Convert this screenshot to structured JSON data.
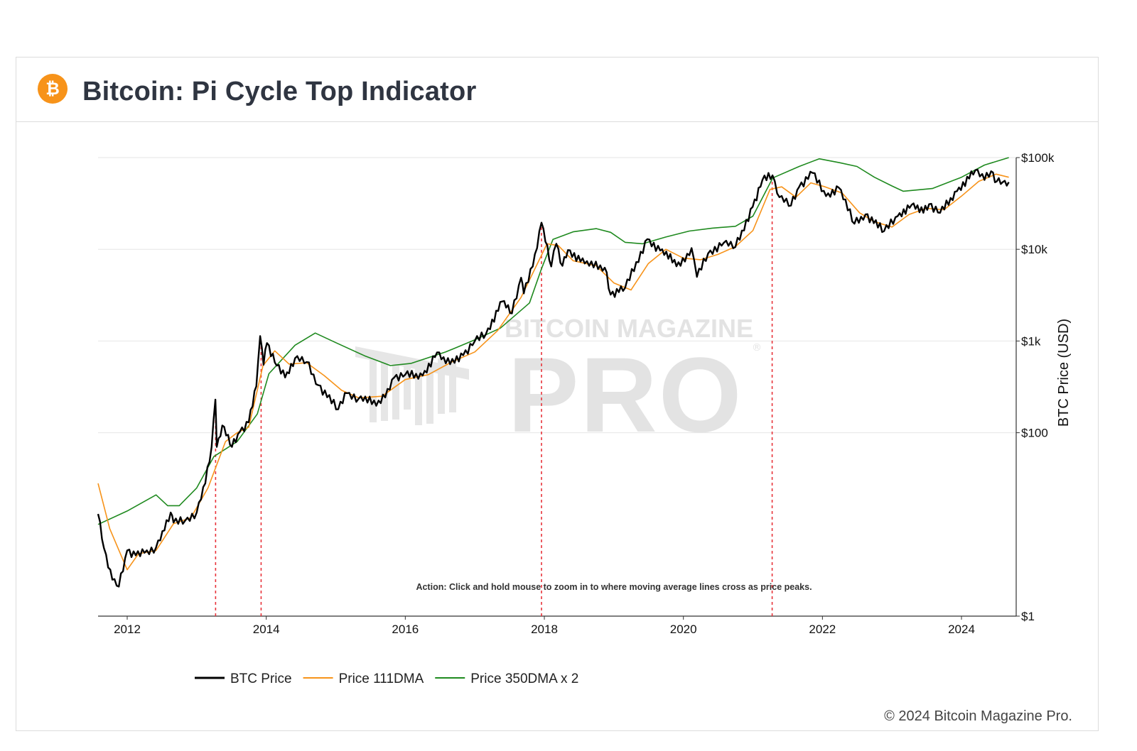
{
  "header": {
    "title": "Bitcoin: Pi Cycle Top Indicator",
    "logo_icon": "bitcoin-logo-icon",
    "logo_symbol": "₿",
    "logo_color": "#f7931a"
  },
  "watermark": {
    "line1": "BITCOIN MAGAZINE",
    "line2": "PRO",
    "registered": "®"
  },
  "annotation": "Action: Click and hold mouse to zoom in to where moving average lines cross as price peaks.",
  "footer": {
    "copyright": "© 2024 Bitcoin Magazine Pro."
  },
  "chart_data": {
    "type": "line",
    "title": "Bitcoin: Pi Cycle Top Indicator",
    "xlabel": "",
    "ylabel": "BTC Price (USD)",
    "yscale": "log",
    "ylim": [
      1,
      100000
    ],
    "xlim": [
      "2011-08-01",
      "2024-10-15"
    ],
    "x_ticks": [
      "2012",
      "2014",
      "2016",
      "2018",
      "2020",
      "2022",
      "2024"
    ],
    "y_ticks": [
      "$1",
      "$100",
      "$1k",
      "$10k",
      "$100k"
    ],
    "y_axis_side": "right",
    "grid": "horizontal",
    "legend_position": "bottom",
    "colors": {
      "BTC Price": "#000000",
      "Price 111DMA": "#f7931a",
      "Price 350DMA x 2": "#1f8a1f",
      "cross_lines": "#e8333a"
    },
    "cross_dates": [
      "2013-04-10",
      "2013-12-05",
      "2017-12-17",
      "2021-04-12"
    ],
    "series": [
      {
        "name": "BTC Price",
        "points": [
          [
            "2011-08-01",
            13
          ],
          [
            "2011-09-01",
            5.5
          ],
          [
            "2011-10-15",
            2.5
          ],
          [
            "2011-11-18",
            2.1
          ],
          [
            "2012-01-01",
            5.2
          ],
          [
            "2012-02-15",
            4.6
          ],
          [
            "2012-04-01",
            4.9
          ],
          [
            "2012-06-01",
            5.6
          ],
          [
            "2012-07-15",
            8.6
          ],
          [
            "2012-08-17",
            13.5
          ],
          [
            "2012-09-01",
            10.5
          ],
          [
            "2012-11-01",
            11
          ],
          [
            "2013-01-01",
            13.5
          ],
          [
            "2013-02-15",
            28
          ],
          [
            "2013-03-20",
            70
          ],
          [
            "2013-04-09",
            230
          ],
          [
            "2013-04-16",
            70
          ],
          [
            "2013-05-15",
            120
          ],
          [
            "2013-07-05",
            70
          ],
          [
            "2013-08-15",
            102
          ],
          [
            "2013-10-01",
            130
          ],
          [
            "2013-11-10",
            320
          ],
          [
            "2013-11-30",
            1130
          ],
          [
            "2013-12-18",
            550
          ],
          [
            "2014-01-05",
            950
          ],
          [
            "2014-02-25",
            540
          ],
          [
            "2014-04-10",
            400
          ],
          [
            "2014-06-01",
            650
          ],
          [
            "2014-08-01",
            590
          ],
          [
            "2014-10-01",
            330
          ],
          [
            "2015-01-14",
            180
          ],
          [
            "2015-03-01",
            270
          ],
          [
            "2015-05-01",
            235
          ],
          [
            "2015-08-25",
            210
          ],
          [
            "2015-11-04",
            400
          ],
          [
            "2016-01-01",
            430
          ],
          [
            "2016-04-01",
            420
          ],
          [
            "2016-06-16",
            750
          ],
          [
            "2016-08-01",
            570
          ],
          [
            "2016-11-01",
            700
          ],
          [
            "2017-01-01",
            1000
          ],
          [
            "2017-03-01",
            1200
          ],
          [
            "2017-05-25",
            2700
          ],
          [
            "2017-07-15",
            2000
          ],
          [
            "2017-09-01",
            4900
          ],
          [
            "2017-09-15",
            3300
          ],
          [
            "2017-11-01",
            6500
          ],
          [
            "2017-12-17",
            19500
          ],
          [
            "2018-02-06",
            6500
          ],
          [
            "2018-03-05",
            11500
          ],
          [
            "2018-04-06",
            6600
          ],
          [
            "2018-05-05",
            9800
          ],
          [
            "2018-08-01",
            7000
          ],
          [
            "2018-11-14",
            6300
          ],
          [
            "2018-12-15",
            3200
          ],
          [
            "2019-03-01",
            3800
          ],
          [
            "2019-06-26",
            12900
          ],
          [
            "2019-09-01",
            9700
          ],
          [
            "2019-12-17",
            6600
          ],
          [
            "2020-02-13",
            10300
          ],
          [
            "2020-03-12",
            5000
          ],
          [
            "2020-05-10",
            9000
          ],
          [
            "2020-08-01",
            11800
          ],
          [
            "2020-10-01",
            10600
          ],
          [
            "2020-12-31",
            29000
          ],
          [
            "2021-02-20",
            57000
          ],
          [
            "2021-04-14",
            64000
          ],
          [
            "2021-05-20",
            37000
          ],
          [
            "2021-07-20",
            30000
          ],
          [
            "2021-09-01",
            48000
          ],
          [
            "2021-11-10",
            68000
          ],
          [
            "2022-01-20",
            38000
          ],
          [
            "2022-03-28",
            47000
          ],
          [
            "2022-06-18",
            19000
          ],
          [
            "2022-08-15",
            24000
          ],
          [
            "2022-11-21",
            15800
          ],
          [
            "2023-01-31",
            23000
          ],
          [
            "2023-04-14",
            30500
          ],
          [
            "2023-06-15",
            25000
          ],
          [
            "2023-07-15",
            31000
          ],
          [
            "2023-09-11",
            25000
          ],
          [
            "2023-12-08",
            43000
          ],
          [
            "2024-03-14",
            73000
          ],
          [
            "2024-05-01",
            57000
          ],
          [
            "2024-06-05",
            71000
          ],
          [
            "2024-07-05",
            55000
          ],
          [
            "2024-08-05",
            54000
          ],
          [
            "2024-09-06",
            54000
          ]
        ]
      },
      {
        "name": "Price 111DMA",
        "points": [
          [
            "2011-08-01",
            28
          ],
          [
            "2011-10-01",
            9
          ],
          [
            "2012-01-01",
            3.2
          ],
          [
            "2012-03-01",
            4.8
          ],
          [
            "2012-06-01",
            5.2
          ],
          [
            "2012-09-01",
            10.2
          ],
          [
            "2012-12-01",
            11.8
          ],
          [
            "2013-03-01",
            25
          ],
          [
            "2013-06-01",
            80
          ],
          [
            "2013-08-01",
            100
          ],
          [
            "2013-10-01",
            115
          ],
          [
            "2013-12-15",
            540
          ],
          [
            "2014-02-15",
            780
          ],
          [
            "2014-05-01",
            560
          ],
          [
            "2014-08-01",
            580
          ],
          [
            "2014-11-01",
            420
          ],
          [
            "2015-02-01",
            290
          ],
          [
            "2015-05-01",
            240
          ],
          [
            "2015-09-01",
            250
          ],
          [
            "2016-01-01",
            380
          ],
          [
            "2016-05-01",
            430
          ],
          [
            "2016-09-01",
            590
          ],
          [
            "2017-01-01",
            760
          ],
          [
            "2017-05-01",
            1300
          ],
          [
            "2017-09-01",
            3000
          ],
          [
            "2018-01-15",
            11500
          ],
          [
            "2018-03-15",
            11000
          ],
          [
            "2018-06-01",
            7500
          ],
          [
            "2018-10-01",
            6600
          ],
          [
            "2019-01-01",
            4300
          ],
          [
            "2019-04-01",
            3600
          ],
          [
            "2019-07-01",
            7000
          ],
          [
            "2019-10-01",
            10000
          ],
          [
            "2020-01-01",
            8000
          ],
          [
            "2020-04-01",
            7700
          ],
          [
            "2020-07-01",
            8800
          ],
          [
            "2020-10-01",
            10700
          ],
          [
            "2021-01-01",
            16000
          ],
          [
            "2021-04-01",
            45000
          ],
          [
            "2021-06-01",
            48000
          ],
          [
            "2021-08-15",
            37000
          ],
          [
            "2021-11-01",
            53000
          ],
          [
            "2022-01-15",
            48000
          ],
          [
            "2022-04-15",
            41000
          ],
          [
            "2022-07-15",
            25000
          ],
          [
            "2022-10-01",
            20000
          ],
          [
            "2023-01-01",
            17500
          ],
          [
            "2023-04-01",
            24000
          ],
          [
            "2023-07-01",
            28000
          ],
          [
            "2023-10-01",
            27000
          ],
          [
            "2024-01-01",
            38000
          ],
          [
            "2024-04-01",
            55000
          ],
          [
            "2024-07-01",
            66000
          ],
          [
            "2024-09-06",
            61000
          ]
        ]
      },
      {
        "name": "Price 350DMA x 2",
        "points": [
          [
            "2011-08-01",
            10
          ],
          [
            "2012-01-01",
            14
          ],
          [
            "2012-06-01",
            21
          ],
          [
            "2012-08-01",
            16
          ],
          [
            "2012-10-01",
            16
          ],
          [
            "2013-01-01",
            25
          ],
          [
            "2013-04-01",
            55
          ],
          [
            "2013-08-01",
            80
          ],
          [
            "2013-11-15",
            160
          ],
          [
            "2014-01-15",
            440
          ],
          [
            "2014-06-01",
            900
          ],
          [
            "2014-09-15",
            1220
          ],
          [
            "2015-01-01",
            960
          ],
          [
            "2015-06-01",
            690
          ],
          [
            "2015-10-15",
            540
          ],
          [
            "2016-02-01",
            570
          ],
          [
            "2016-08-01",
            760
          ],
          [
            "2017-01-01",
            1030
          ],
          [
            "2017-05-15",
            1380
          ],
          [
            "2017-10-15",
            2600
          ],
          [
            "2017-12-15",
            6000
          ],
          [
            "2018-02-15",
            12800
          ],
          [
            "2018-06-01",
            15500
          ],
          [
            "2018-10-01",
            16800
          ],
          [
            "2018-12-15",
            15300
          ],
          [
            "2019-03-01",
            11900
          ],
          [
            "2019-06-01",
            11500
          ],
          [
            "2019-10-01",
            13600
          ],
          [
            "2020-02-01",
            15800
          ],
          [
            "2020-06-01",
            17000
          ],
          [
            "2020-10-01",
            17800
          ],
          [
            "2021-01-01",
            23000
          ],
          [
            "2021-04-15",
            60000
          ],
          [
            "2021-09-01",
            80000
          ],
          [
            "2021-12-15",
            97000
          ],
          [
            "2022-04-01",
            88000
          ],
          [
            "2022-07-01",
            80000
          ],
          [
            "2022-10-01",
            61000
          ],
          [
            "2023-01-01",
            49000
          ],
          [
            "2023-03-01",
            43000
          ],
          [
            "2023-08-01",
            46000
          ],
          [
            "2024-01-01",
            61000
          ],
          [
            "2024-05-01",
            83000
          ],
          [
            "2024-09-06",
            100000
          ]
        ]
      }
    ]
  }
}
